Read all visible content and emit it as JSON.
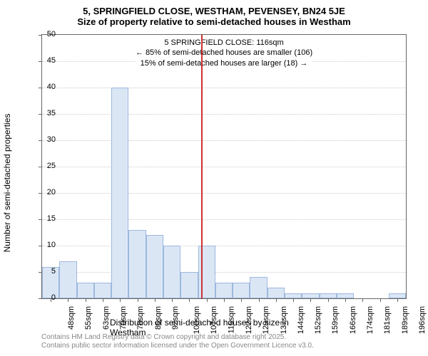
{
  "title_line1": "5, SPRINGFIELD CLOSE, WESTHAM, PEVENSEY, BN24 5JE",
  "title_line2": "Size of property relative to semi-detached houses in Westham",
  "y_axis_label": "Number of semi-detached properties",
  "x_axis_label": "Distribution of semi-detached houses by size in Westham",
  "footer_line1": "Contains HM Land Registry data © Crown copyright and database right 2025.",
  "footer_line2": "Contains public sector information licensed under the Open Government Licence v3.0.",
  "annotation": {
    "line1": "5 SPRINGFIELD CLOSE: 116sqm",
    "line2": "← 85% of semi-detached houses are smaller (106)",
    "line3": "15% of semi-detached houses are larger (18) →"
  },
  "chart": {
    "type": "histogram",
    "background_color": "#ffffff",
    "bar_fill": "#dbe6f5",
    "bar_border": "#9cb8dd",
    "marker_color": "#cc3333",
    "grid_color": "#cccccc",
    "axis_color": "#666666",
    "ylim": [
      0,
      50
    ],
    "ytick_step": 5,
    "y_ticks": [
      0,
      5,
      10,
      15,
      20,
      25,
      30,
      35,
      40,
      45,
      50
    ],
    "x_categories": [
      "48sqm",
      "55sqm",
      "63sqm",
      "70sqm",
      "78sqm",
      "85sqm",
      "92sqm",
      "100sqm",
      "107sqm",
      "115sqm",
      "122sqm",
      "129sqm",
      "137sqm",
      "144sqm",
      "152sqm",
      "159sqm",
      "166sqm",
      "174sqm",
      "181sqm",
      "189sqm",
      "196sqm"
    ],
    "values": [
      6,
      7,
      3,
      3,
      40,
      13,
      12,
      10,
      5,
      10,
      3,
      3,
      4,
      2,
      1,
      1,
      1,
      1,
      0,
      0,
      1
    ],
    "marker_position": 9.2,
    "title_fontsize": 13,
    "label_fontsize": 12,
    "tick_fontsize": 11,
    "annotation_fontsize": 11,
    "footer_fontsize": 10
  }
}
